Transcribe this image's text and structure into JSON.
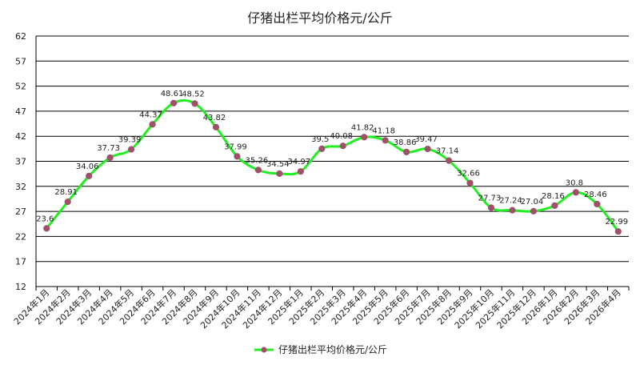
{
  "chart_data": {
    "type": "line",
    "title": "仔猪出栏平均价格元/公斤",
    "xlabel": "",
    "ylabel": "",
    "ylim": [
      12,
      62
    ],
    "yticks": [
      12,
      17,
      22,
      27,
      32,
      37,
      42,
      47,
      52,
      57,
      62
    ],
    "grid": "horizontal",
    "legend_position": "bottom",
    "categories": [
      "2024年1月",
      "2024年2月",
      "2024年3月",
      "2024年4月",
      "2024年5月",
      "2024年6月",
      "2024年7月",
      "2024年8月",
      "2024年9月",
      "2024年10月",
      "2024年11月",
      "2024年12月",
      "2025年1月",
      "2025年2月",
      "2025年3月",
      "2025年4月",
      "2025年5月",
      "2025年6月",
      "2025年7月",
      "2025年8月",
      "2025年9月",
      "2025年10月",
      "2025年11月",
      "2025年12月",
      "2026年1月",
      "2026年2月",
      "2026年3月",
      "2026年4月"
    ],
    "series": [
      {
        "name": "仔猪出栏平均价格元/公斤",
        "line_color": "#22ee22",
        "marker_color": "#a0506a",
        "values": [
          23.6,
          28.91,
          34.06,
          37.73,
          39.39,
          44.37,
          48.61,
          48.52,
          43.82,
          37.99,
          35.26,
          34.54,
          34.97,
          39.5,
          40.08,
          41.82,
          41.18,
          38.86,
          39.47,
          37.14,
          32.66,
          27.73,
          27.24,
          27.04,
          28.16,
          30.8,
          28.46,
          22.99
        ],
        "labels": [
          "23.6",
          "28.91",
          "34.06",
          "37.73",
          "39.39",
          "44.37",
          "48.61",
          "48.52",
          "43.82",
          "37.99",
          "35.26",
          "34.54",
          "34.97",
          "39.5",
          "40.08",
          "41.82",
          "41.18",
          "38.86",
          "39.47",
          "37.14",
          "32.66",
          "27.73",
          "27.24",
          "27.04",
          "28.16",
          "30.8",
          "28.46",
          "22.99"
        ]
      }
    ]
  }
}
